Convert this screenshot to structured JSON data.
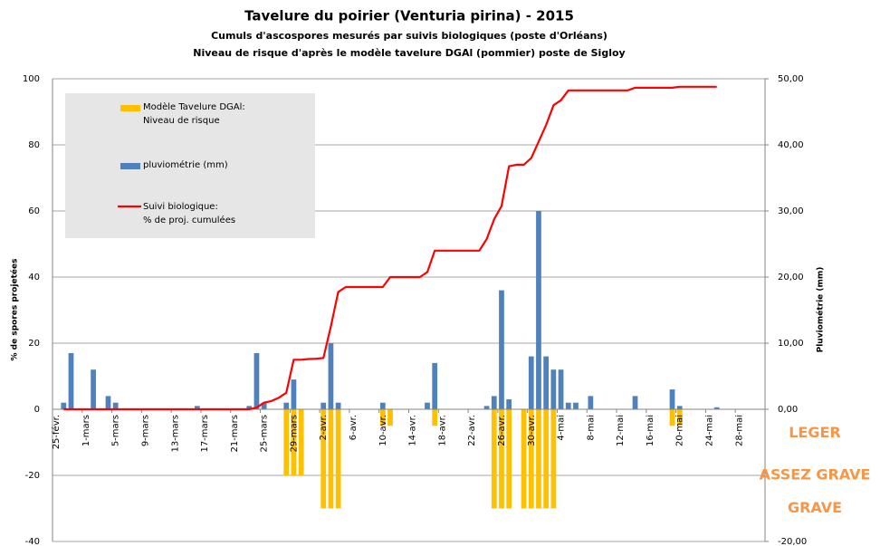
{
  "chart_data": {
    "type": "bar-line",
    "title": "Tavelure du poirier (Venturia pirina) - 2015",
    "subtitle": [
      "Cumuls d'ascospores mesurés par suivis biologiques (poste d'Orléans)",
      "Niveau de risque d'après le modèle tavelure DGAl (pommier) poste de Sigloy"
    ],
    "ylabel": "% de spores projetées",
    "y2label": "Pluviométrie (mm)",
    "categories": [
      "25-févr.",
      null,
      null,
      null,
      "1-mars",
      null,
      null,
      null,
      "5-mars",
      null,
      null,
      null,
      "9-mars",
      null,
      null,
      null,
      "13-mars",
      null,
      null,
      null,
      "17-mars",
      null,
      null,
      null,
      "21-mars",
      null,
      null,
      null,
      "25-mars",
      null,
      null,
      null,
      "29-mars",
      null,
      null,
      null,
      "2-avr.",
      null,
      null,
      null,
      "6-avr.",
      null,
      null,
      null,
      "10-avr.",
      null,
      null,
      null,
      "14-avr.",
      null,
      null,
      null,
      "18-avr.",
      null,
      null,
      null,
      "22-avr.",
      null,
      null,
      null,
      "26-avr.",
      null,
      null,
      null,
      "30-avr.",
      null,
      null,
      null,
      "4-mai",
      null,
      null,
      null,
      "8-mai",
      null,
      null,
      null,
      "12-mai",
      null,
      null,
      null,
      "16-mai",
      null,
      null,
      null,
      "20-mai",
      null,
      null,
      null,
      "24-mai",
      null,
      null,
      null,
      "28-mai",
      null,
      null,
      null
    ],
    "series": [
      {
        "name": "Modèle Tavelure DGAl:\nNiveau de risque",
        "type": "bar",
        "color": "#ffc000",
        "values": [
          null,
          null,
          null,
          null,
          null,
          null,
          null,
          null,
          null,
          null,
          null,
          null,
          null,
          null,
          null,
          null,
          null,
          null,
          null,
          null,
          null,
          null,
          null,
          null,
          null,
          null,
          null,
          null,
          null,
          null,
          null,
          -20,
          -20,
          -20,
          null,
          null,
          -30,
          -30,
          -30,
          null,
          null,
          null,
          null,
          null,
          -5,
          -5,
          null,
          null,
          null,
          null,
          null,
          -5,
          null,
          null,
          null,
          null,
          null,
          null,
          null,
          -30,
          -30,
          -30,
          null,
          -30,
          -30,
          -30,
          -30,
          -30,
          null,
          null,
          null,
          null,
          null,
          null,
          null,
          null,
          null,
          null,
          null,
          null,
          null,
          null,
          null,
          -5,
          -5,
          null,
          null,
          null,
          null,
          null,
          null,
          null,
          null,
          null,
          null,
          null
        ]
      },
      {
        "name": "pluviométrie (mm)",
        "type": "bar",
        "axis": "y2",
        "color": "#4f81bd",
        "values": [
          null,
          1,
          8.5,
          null,
          null,
          6,
          null,
          2,
          1,
          null,
          null,
          null,
          null,
          null,
          null,
          null,
          null,
          null,
          null,
          0.5,
          null,
          null,
          null,
          null,
          null,
          null,
          0.5,
          8.5,
          1,
          null,
          null,
          1,
          4.5,
          null,
          null,
          null,
          1,
          10,
          1,
          null,
          null,
          null,
          null,
          null,
          1,
          null,
          null,
          null,
          null,
          null,
          1,
          7,
          null,
          null,
          null,
          null,
          null,
          null,
          0.5,
          2,
          18,
          1.5,
          null,
          null,
          8,
          30,
          8,
          6,
          6,
          1,
          1,
          null,
          2,
          null,
          null,
          null,
          null,
          null,
          2,
          null,
          null,
          null,
          null,
          3,
          0.5,
          null,
          null,
          null,
          null,
          0.3,
          null,
          null,
          null,
          null,
          null,
          null
        ]
      },
      {
        "name": "Suivi biologique:\n% de proj. cumulées",
        "type": "line",
        "color": "#ff0000",
        "values": [
          null,
          0,
          0,
          0,
          0,
          0,
          0,
          0,
          0,
          0,
          0,
          0,
          0,
          0,
          0,
          0,
          0,
          0,
          0,
          0,
          0,
          0,
          0,
          0,
          0,
          0,
          0,
          0.5,
          2,
          2.5,
          3.5,
          5,
          15,
          15,
          15.2,
          15.3,
          15.5,
          25,
          35.5,
          37,
          37,
          37,
          37,
          37,
          37,
          40,
          40,
          40,
          40,
          40,
          41.5,
          48,
          48,
          48,
          48,
          48,
          48,
          48,
          51.5,
          57.5,
          61.5,
          73.5,
          74,
          74,
          76,
          81,
          86,
          92,
          93.5,
          96.5,
          96.5,
          96.5,
          96.5,
          96.5,
          96.5,
          96.5,
          96.5,
          96.5,
          97.3,
          97.3,
          97.3,
          97.3,
          97.3,
          97.3,
          97.6,
          97.6,
          97.6,
          97.6,
          97.6,
          97.6,
          null,
          null,
          null,
          null,
          null,
          null
        ]
      }
    ],
    "risk_levels": [
      {
        "value": -5,
        "label": "LEGER"
      },
      {
        "value": -20,
        "label": "ASSEZ GRAVE"
      },
      {
        "value": -30,
        "label": "GRAVE"
      }
    ],
    "ylim": [
      -40,
      100
    ],
    "yticks": [
      -40,
      -20,
      0,
      20,
      40,
      60,
      80,
      100
    ],
    "y2lim": [
      -20,
      50
    ],
    "y2ticks": [
      {
        "value": -20,
        "label": "-20,00"
      },
      {
        "value": 0,
        "label": "0,00"
      },
      {
        "value": 10,
        "label": "10,00"
      },
      {
        "value": 20,
        "label": "20,00"
      },
      {
        "value": 30,
        "label": "30,00"
      },
      {
        "value": 40,
        "label": "40,00"
      },
      {
        "value": 50,
        "label": "50,00"
      }
    ],
    "grid": true
  }
}
